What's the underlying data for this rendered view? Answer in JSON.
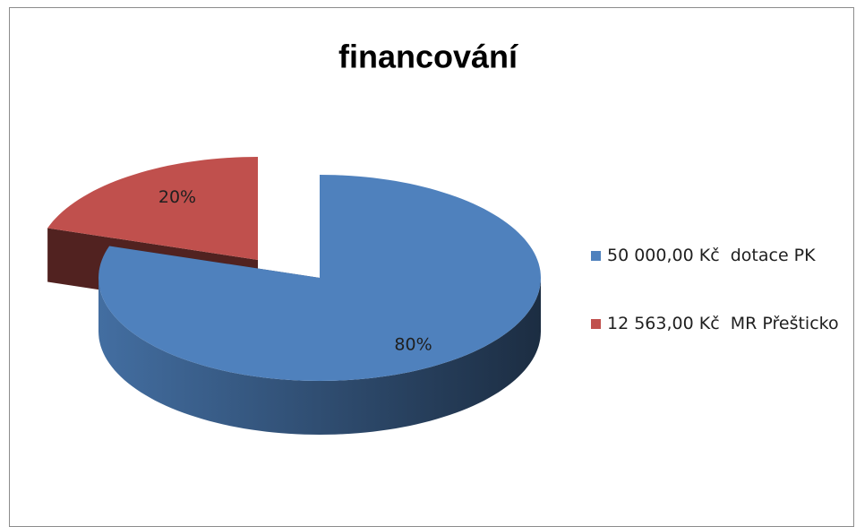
{
  "chart_data": {
    "type": "pie",
    "title": "financování",
    "categories": [
      "50 000,00 Kč  dotace PK",
      "12 563,00 Kč  MR Přešticko"
    ],
    "values": [
      80,
      20
    ],
    "value_labels": [
      "80%",
      "20%"
    ],
    "colors": [
      "#4f81bd",
      "#c0504d"
    ],
    "legend": "right"
  }
}
